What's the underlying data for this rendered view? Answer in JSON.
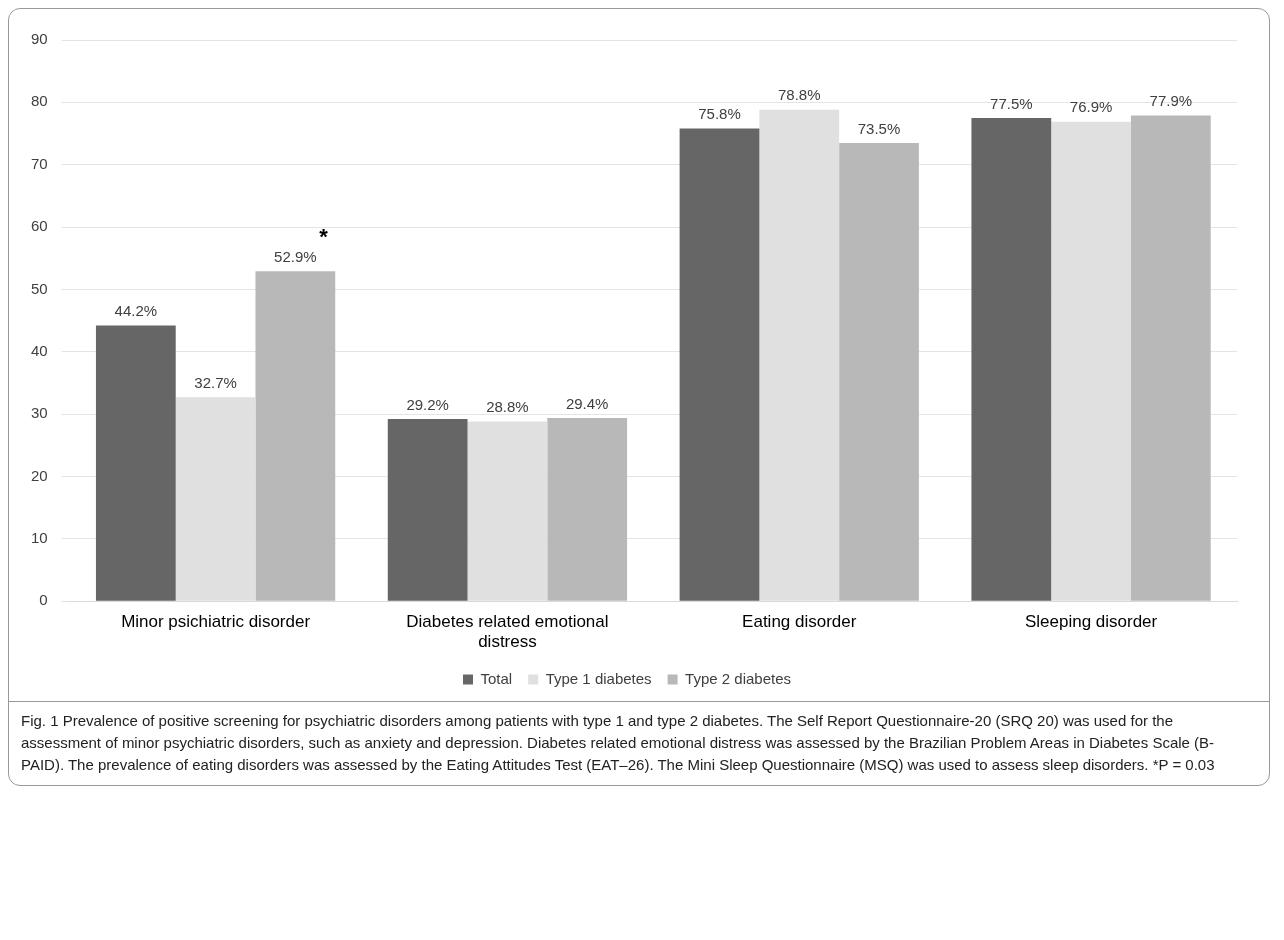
{
  "chart_data": {
    "type": "bar",
    "categories": [
      "Minor psichiatric disorder",
      "Diabetes related emotional distress",
      "Eating disorder",
      "Sleeping disorder"
    ],
    "series": [
      {
        "name": "Total",
        "color": "#666666",
        "values": [
          44.2,
          29.2,
          75.8,
          77.5
        ],
        "value_labels": [
          "44.2%",
          "29.2%",
          "75.8%",
          "77.5%"
        ]
      },
      {
        "name": "Type 1 diabetes",
        "color": "#e0e0e0",
        "values": [
          32.7,
          28.8,
          78.8,
          76.9
        ],
        "value_labels": [
          "32.7%",
          "28.8%",
          "78.8%",
          "76.9%"
        ]
      },
      {
        "name": "Type 2 diabetes",
        "color": "#b8b8b8",
        "values": [
          52.9,
          29.4,
          73.5,
          77.9
        ],
        "value_labels": [
          "52.9%",
          "29.4%",
          "73.5%",
          "77.9%"
        ]
      }
    ],
    "ylim": [
      0,
      90
    ],
    "yticks": [
      0,
      10,
      20,
      30,
      40,
      50,
      60,
      70,
      80,
      90
    ],
    "grid": "y",
    "legend": "bottom",
    "annotations": [
      "*",
      "Fig. 1 Prevalence of positive screening for psychiatric disorders among patients with type 1 and type 2 diabetes. The Self Report Questionnaire-20 (SRQ 20) was used for the assessment of minor psychiatric disorders, such as anxiety and depression. Diabetes related emotional distress was assessed by the Brazilian Problem Areas in Diabetes Scale (B-PAID). The prevalence of eating disorders was assessed by the Eating Attitudes Test (EAT–26). The Mini Sleep Questionnaire (MSQ) was used to assess sleep disorders. *P = 0.03"
    ]
  }
}
